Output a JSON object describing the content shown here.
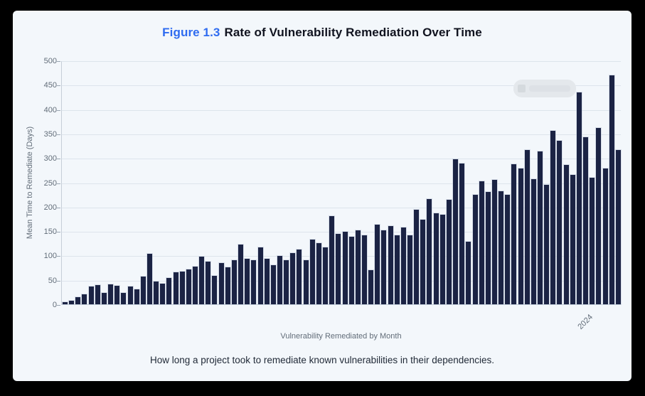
{
  "title": {
    "prefix": "Figure 1.3",
    "text": "Rate of Vulnerability Remediation Over Time"
  },
  "caption": "How long a project took to remediate known vulnerabilities in their dependencies.",
  "colors": {
    "bar": "#1b2344",
    "accent_blue": "#2e6bf0",
    "panel_background": "#f3f7fb",
    "frame": "#000000",
    "grid": "#dde4ec",
    "axis_text": "#626d79",
    "title_text": "#10131f"
  },
  "chart_data": {
    "type": "bar",
    "title": "Figure 1.3 Rate of Vulnerability Remediation Over Time",
    "xlabel": "Vulnerability Remediated by Month",
    "ylabel": "Mean Time to Remediate (Days)",
    "ylim": [
      0,
      500
    ],
    "y_ticks": [
      0,
      50,
      100,
      150,
      200,
      250,
      300,
      350,
      400,
      450,
      500
    ],
    "grid": true,
    "legend": {
      "redacted": true,
      "note": "blurred legend chip, no readable text"
    },
    "x_tick_labels": [
      {
        "label": "2024",
        "bar_index": 82
      }
    ],
    "values": [
      5,
      8,
      15,
      21,
      37,
      39,
      24,
      41,
      38,
      23,
      37,
      31,
      57,
      104,
      47,
      43,
      54,
      65,
      67,
      72,
      77,
      97,
      87,
      59,
      85,
      76,
      90,
      123,
      94,
      90,
      116,
      94,
      80,
      99,
      91,
      105,
      112,
      91,
      132,
      126,
      117,
      181,
      145,
      149,
      138,
      151,
      141,
      70,
      163,
      152,
      161,
      142,
      158,
      142,
      194,
      174,
      216,
      186,
      184,
      215,
      297,
      288,
      128,
      225,
      252,
      230,
      255,
      232,
      224,
      287,
      279,
      316,
      257,
      313,
      245,
      355,
      336,
      286,
      266,
      434,
      342,
      259,
      362,
      278,
      469,
      316
    ]
  }
}
